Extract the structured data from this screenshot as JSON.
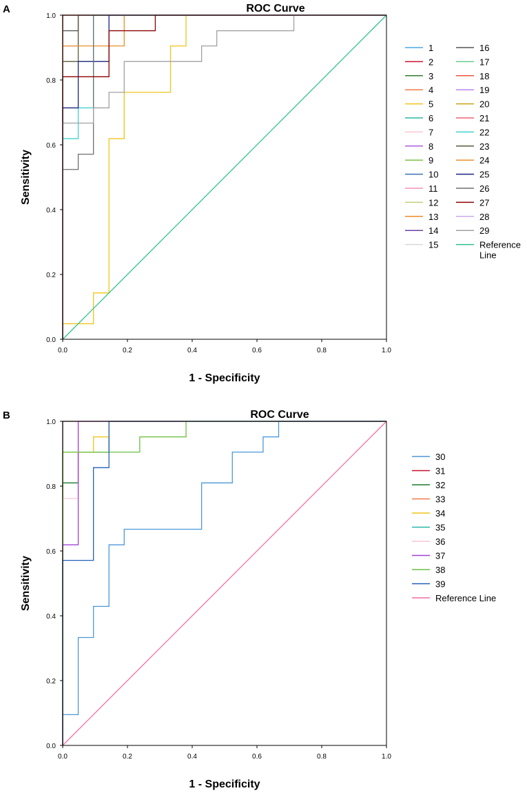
{
  "chart_data": [
    {
      "panel": "A",
      "type": "line",
      "title": "ROC Curve",
      "xlabel": "1 - Specificity",
      "ylabel": "Sensitivity",
      "xlim": [
        0,
        1
      ],
      "ylim": [
        0,
        1
      ],
      "xticks": [
        "0.0",
        "0.2",
        "0.4",
        "0.6",
        "0.8",
        "1.0"
      ],
      "yticks": [
        "0.0",
        "0.2",
        "0.4",
        "0.6",
        "0.8",
        "1.0"
      ],
      "legend_position": "right",
      "series": [
        {
          "name": "1",
          "color": "#4da6e8",
          "points": [
            [
              0,
              0
            ],
            [
              0,
              1
            ],
            [
              1,
              1
            ]
          ]
        },
        {
          "name": "2",
          "color": "#c8102e",
          "points": [
            [
              0,
              0
            ],
            [
              0,
              1
            ],
            [
              1,
              1
            ]
          ]
        },
        {
          "name": "3",
          "color": "#2e7d32",
          "points": [
            [
              0,
              0
            ],
            [
              0,
              1
            ],
            [
              1,
              1
            ]
          ]
        },
        {
          "name": "4",
          "color": "#f07a4a",
          "points": [
            [
              0,
              0
            ],
            [
              0,
              1
            ],
            [
              1,
              1
            ]
          ]
        },
        {
          "name": "5",
          "color": "#f0c419",
          "points": [
            [
              0,
              0
            ],
            [
              0,
              0.048
            ],
            [
              0.095,
              0.048
            ],
            [
              0.095,
              0.143
            ],
            [
              0.143,
              0.143
            ],
            [
              0.143,
              0.619
            ],
            [
              0.19,
              0.619
            ],
            [
              0.19,
              0.762
            ],
            [
              0.333,
              0.762
            ],
            [
              0.333,
              0.905
            ],
            [
              0.381,
              0.905
            ],
            [
              0.381,
              1
            ],
            [
              1,
              1
            ]
          ]
        },
        {
          "name": "6",
          "color": "#2ab5a5",
          "points": [
            [
              0,
              0
            ],
            [
              0,
              1
            ],
            [
              1,
              1
            ]
          ]
        },
        {
          "name": "7",
          "color": "#f7c6d0",
          "points": [
            [
              0,
              0
            ],
            [
              0,
              1
            ],
            [
              1,
              1
            ]
          ]
        },
        {
          "name": "8",
          "color": "#b05ce0",
          "points": [
            [
              0,
              0
            ],
            [
              0,
              1
            ],
            [
              1,
              1
            ]
          ]
        },
        {
          "name": "9",
          "color": "#7cc242",
          "points": [
            [
              0,
              0
            ],
            [
              0,
              1
            ],
            [
              1,
              1
            ]
          ]
        },
        {
          "name": "10",
          "color": "#3a6fb0",
          "points": [
            [
              0,
              0
            ],
            [
              0,
              1
            ],
            [
              1,
              1
            ]
          ]
        },
        {
          "name": "11",
          "color": "#f58fb8",
          "points": [
            [
              0,
              0
            ],
            [
              0,
              1
            ],
            [
              1,
              1
            ]
          ]
        },
        {
          "name": "12",
          "color": "#c5cc7a",
          "points": [
            [
              0,
              0
            ],
            [
              0,
              1
            ],
            [
              1,
              1
            ]
          ]
        },
        {
          "name": "13",
          "color": "#f08a24",
          "points": [
            [
              0,
              0
            ],
            [
              0,
              1
            ],
            [
              1,
              1
            ]
          ]
        },
        {
          "name": "14",
          "color": "#6a3fa0",
          "points": [
            [
              0,
              0
            ],
            [
              0,
              1
            ],
            [
              1,
              1
            ]
          ]
        },
        {
          "name": "15",
          "color": "#d9d9d9",
          "points": [
            [
              0,
              0
            ],
            [
              0,
              1
            ],
            [
              1,
              1
            ]
          ]
        },
        {
          "name": "16",
          "color": "#555555",
          "points": [
            [
              0,
              0
            ],
            [
              0,
              0.952
            ],
            [
              0.048,
              0.952
            ],
            [
              0.048,
              1
            ],
            [
              1,
              1
            ]
          ]
        },
        {
          "name": "17",
          "color": "#66cc88",
          "points": [
            [
              0,
              0
            ],
            [
              0,
              1
            ],
            [
              1,
              1
            ]
          ]
        },
        {
          "name": "18",
          "color": "#e8573a",
          "points": [
            [
              0,
              0
            ],
            [
              0,
              1
            ],
            [
              1,
              1
            ]
          ]
        },
        {
          "name": "19",
          "color": "#c080f0",
          "points": [
            [
              0,
              0
            ],
            [
              0,
              0.905
            ],
            [
              0.048,
              0.905
            ],
            [
              0.048,
              1
            ],
            [
              1,
              1
            ]
          ]
        },
        {
          "name": "20",
          "color": "#c8a010",
          "points": [
            [
              0,
              0
            ],
            [
              0,
              1
            ],
            [
              1,
              1
            ]
          ]
        },
        {
          "name": "21",
          "color": "#f06070",
          "points": [
            [
              0,
              0
            ],
            [
              0,
              1
            ],
            [
              1,
              1
            ]
          ]
        },
        {
          "name": "22",
          "color": "#40d0d0",
          "points": [
            [
              0,
              0
            ],
            [
              0,
              0.619
            ],
            [
              0.048,
              0.619
            ],
            [
              0.048,
              0.714
            ],
            [
              0.095,
              0.714
            ],
            [
              0.095,
              1
            ],
            [
              1,
              1
            ]
          ]
        },
        {
          "name": "23",
          "color": "#5a5a3a",
          "points": [
            [
              0,
              0
            ],
            [
              0,
              0.857
            ],
            [
              0.048,
              0.857
            ],
            [
              0.048,
              1
            ],
            [
              1,
              1
            ]
          ]
        },
        {
          "name": "24",
          "color": "#e8912a",
          "points": [
            [
              0,
              0
            ],
            [
              0,
              0.905
            ],
            [
              0.19,
              0.905
            ],
            [
              0.19,
              1
            ],
            [
              1,
              1
            ]
          ]
        },
        {
          "name": "25",
          "color": "#1a237e",
          "points": [
            [
              0,
              0
            ],
            [
              0,
              0.714
            ],
            [
              0.048,
              0.714
            ],
            [
              0.048,
              0.857
            ],
            [
              0.143,
              0.857
            ],
            [
              0.143,
              1
            ],
            [
              1,
              1
            ]
          ]
        },
        {
          "name": "26",
          "color": "#6e6e6e",
          "points": [
            [
              0,
              0
            ],
            [
              0,
              0.524
            ],
            [
              0.048,
              0.524
            ],
            [
              0.048,
              0.571
            ],
            [
              0.095,
              0.571
            ],
            [
              0.095,
              1
            ],
            [
              1,
              1
            ]
          ]
        },
        {
          "name": "27",
          "color": "#8b0000",
          "points": [
            [
              0,
              0
            ],
            [
              0,
              0.81
            ],
            [
              0.143,
              0.81
            ],
            [
              0.143,
              0.952
            ],
            [
              0.286,
              0.952
            ],
            [
              0.286,
              1
            ],
            [
              1,
              1
            ]
          ]
        },
        {
          "name": "28",
          "color": "#c9a8f0",
          "points": [
            [
              0,
              0
            ],
            [
              0,
              1
            ],
            [
              1,
              1
            ]
          ]
        },
        {
          "name": "29",
          "color": "#a0a0a0",
          "points": [
            [
              0,
              0
            ],
            [
              0,
              0.667
            ],
            [
              0.095,
              0.667
            ],
            [
              0.095,
              0.714
            ],
            [
              0.143,
              0.714
            ],
            [
              0.143,
              0.762
            ],
            [
              0.19,
              0.762
            ],
            [
              0.19,
              0.857
            ],
            [
              0.429,
              0.857
            ],
            [
              0.429,
              0.905
            ],
            [
              0.476,
              0.905
            ],
            [
              0.476,
              0.952
            ],
            [
              0.714,
              0.952
            ],
            [
              0.714,
              1
            ],
            [
              1,
              1
            ]
          ]
        }
      ],
      "reference_line": {
        "name": "Reference Line",
        "label_lines": [
          "Reference",
          "Line"
        ],
        "color": "#2ec08a",
        "points": [
          [
            0,
            0
          ],
          [
            1,
            1
          ]
        ]
      }
    },
    {
      "panel": "B",
      "type": "line",
      "title": "ROC Curve",
      "xlabel": "1 - Specificity",
      "ylabel": "Sensitivity",
      "xlim": [
        0,
        1
      ],
      "ylim": [
        0,
        1
      ],
      "xticks": [
        "0.0",
        "0.2",
        "0.4",
        "0.6",
        "0.8",
        "1.0"
      ],
      "yticks": [
        "0.0",
        "0.2",
        "0.4",
        "0.6",
        "0.8",
        "1.0"
      ],
      "legend_position": "right",
      "series": [
        {
          "name": "30",
          "color": "#4a98d8",
          "points": [
            [
              0,
              0
            ],
            [
              0,
              0.095
            ],
            [
              0.048,
              0.095
            ],
            [
              0.048,
              0.333
            ],
            [
              0.095,
              0.333
            ],
            [
              0.095,
              0.429
            ],
            [
              0.143,
              0.429
            ],
            [
              0.143,
              0.619
            ],
            [
              0.19,
              0.619
            ],
            [
              0.19,
              0.667
            ],
            [
              0.429,
              0.667
            ],
            [
              0.429,
              0.81
            ],
            [
              0.524,
              0.81
            ],
            [
              0.524,
              0.905
            ],
            [
              0.619,
              0.905
            ],
            [
              0.619,
              0.952
            ],
            [
              0.667,
              0.952
            ],
            [
              0.667,
              1
            ],
            [
              1,
              1
            ]
          ]
        },
        {
          "name": "31",
          "color": "#c8102e",
          "points": [
            [
              0,
              0
            ],
            [
              0,
              1
            ],
            [
              1,
              1
            ]
          ]
        },
        {
          "name": "32",
          "color": "#1b7a2a",
          "points": [
            [
              0,
              0
            ],
            [
              0,
              0.81
            ],
            [
              0.048,
              0.81
            ],
            [
              0.048,
              0.905
            ],
            [
              0.143,
              0.905
            ],
            [
              0.143,
              1
            ],
            [
              1,
              1
            ]
          ]
        },
        {
          "name": "33",
          "color": "#f07a4a",
          "points": [
            [
              0,
              0
            ],
            [
              0,
              1
            ],
            [
              1,
              1
            ]
          ]
        },
        {
          "name": "34",
          "color": "#f0c419",
          "points": [
            [
              0,
              0
            ],
            [
              0,
              0.905
            ],
            [
              0.095,
              0.905
            ],
            [
              0.095,
              0.952
            ],
            [
              0.143,
              0.952
            ],
            [
              0.143,
              1
            ],
            [
              1,
              1
            ]
          ]
        },
        {
          "name": "35",
          "color": "#2ab5a5",
          "points": [
            [
              0,
              0
            ],
            [
              0,
              1
            ],
            [
              1,
              1
            ]
          ]
        },
        {
          "name": "36",
          "color": "#f7c6d0",
          "points": [
            [
              0,
              0
            ],
            [
              0,
              0.762
            ],
            [
              0.048,
              0.762
            ],
            [
              0.048,
              1
            ],
            [
              1,
              1
            ]
          ]
        },
        {
          "name": "37",
          "color": "#a040d8",
          "points": [
            [
              0,
              0
            ],
            [
              0,
              0.619
            ],
            [
              0.048,
              0.619
            ],
            [
              0.048,
              1
            ],
            [
              1,
              1
            ]
          ]
        },
        {
          "name": "38",
          "color": "#6cc040",
          "points": [
            [
              0,
              0
            ],
            [
              0,
              0.905
            ],
            [
              0.238,
              0.905
            ],
            [
              0.238,
              0.952
            ],
            [
              0.381,
              0.952
            ],
            [
              0.381,
              1
            ],
            [
              1,
              1
            ]
          ]
        },
        {
          "name": "39",
          "color": "#2060b8",
          "points": [
            [
              0,
              0
            ],
            [
              0,
              0.571
            ],
            [
              0.095,
              0.571
            ],
            [
              0.095,
              0.857
            ],
            [
              0.143,
              0.857
            ],
            [
              0.143,
              1
            ],
            [
              1,
              1
            ]
          ]
        }
      ],
      "reference_line": {
        "name": "Reference Line",
        "label_lines": [
          "Reference Line"
        ],
        "color": "#f06ea0",
        "points": [
          [
            0,
            0
          ],
          [
            1,
            1
          ]
        ]
      }
    }
  ]
}
